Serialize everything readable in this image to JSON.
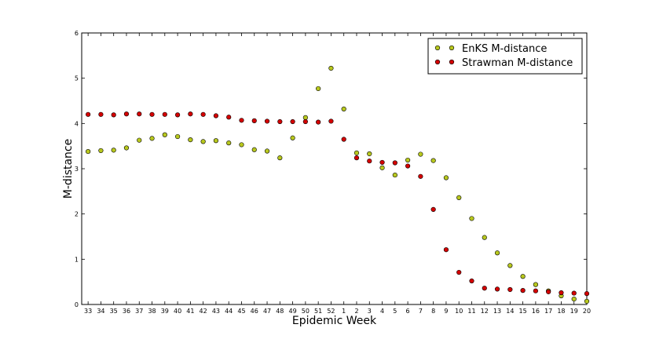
{
  "chart_data": {
    "type": "scatter",
    "xlabel": "Epidemic Week",
    "ylabel": "M-distance",
    "categories": [
      "33",
      "34",
      "35",
      "36",
      "37",
      "38",
      "39",
      "40",
      "41",
      "42",
      "43",
      "44",
      "45",
      "46",
      "47",
      "48",
      "49",
      "50",
      "51",
      "52",
      "1",
      "2",
      "3",
      "4",
      "5",
      "6",
      "7",
      "8",
      "9",
      "10",
      "11",
      "12",
      "13",
      "14",
      "15",
      "16",
      "17",
      "18",
      "19",
      "20"
    ],
    "ylim": [
      0,
      6
    ],
    "yticks": [
      0,
      1,
      2,
      3,
      4,
      5,
      6
    ],
    "grid": false,
    "legend_position": "top-right",
    "series": [
      {
        "name": "EnKS M-distance",
        "color": "#b8c81e",
        "values": [
          3.38,
          3.4,
          3.41,
          3.46,
          3.63,
          3.67,
          3.75,
          3.71,
          3.64,
          3.6,
          3.62,
          3.57,
          3.53,
          3.42,
          3.39,
          3.24,
          3.68,
          4.13,
          4.77,
          5.22,
          4.32,
          3.35,
          3.33,
          3.02,
          2.86,
          3.19,
          3.32,
          3.18,
          2.8,
          2.36,
          1.9,
          1.48,
          1.14,
          0.86,
          0.62,
          0.44,
          0.3,
          0.19,
          0.12,
          0.07
        ]
      },
      {
        "name": "Strawman M-distance",
        "color": "#d40000",
        "values": [
          4.2,
          4.2,
          4.19,
          4.21,
          4.21,
          4.2,
          4.2,
          4.19,
          4.21,
          4.2,
          4.17,
          4.14,
          4.07,
          4.06,
          4.05,
          4.04,
          4.04,
          4.04,
          4.03,
          4.05,
          3.65,
          3.24,
          3.17,
          3.14,
          3.13,
          3.06,
          2.83,
          2.1,
          1.21,
          0.71,
          0.52,
          0.36,
          0.34,
          0.33,
          0.31,
          0.3,
          0.28,
          0.26,
          0.25,
          0.24
        ]
      }
    ]
  }
}
